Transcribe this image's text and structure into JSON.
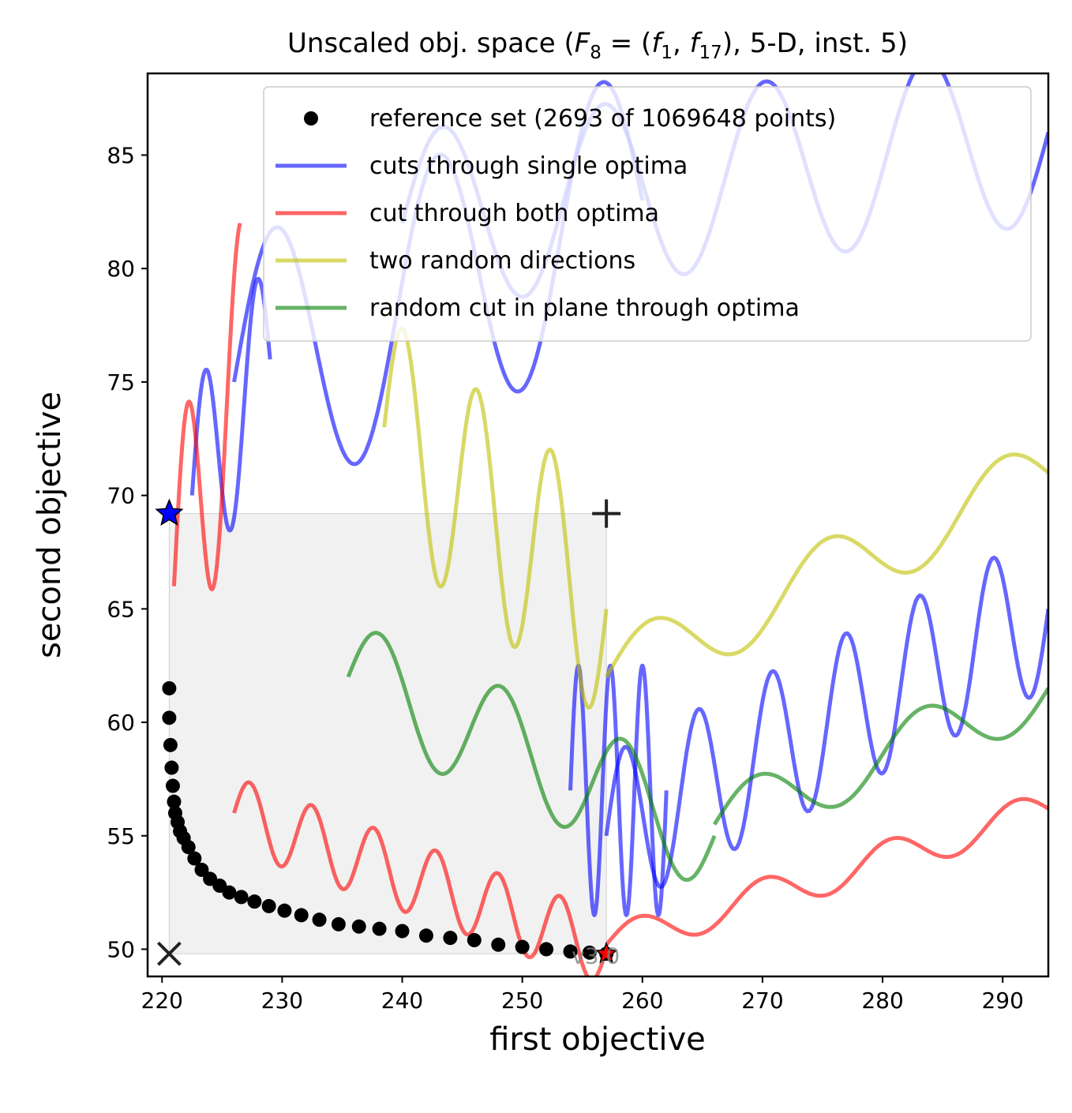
{
  "chart_data": {
    "type": "line",
    "title_pre": "Unscaled obj. space (",
    "title_math_F": "F",
    "title_math_Fsub": "8",
    "title_math_mid": " = (",
    "title_math_f1": "f",
    "title_math_f1sub": "1",
    "title_math_comma": ", ",
    "title_math_f2": "f",
    "title_math_f2sub": "17",
    "title_post": "), 5-D, inst. 5)",
    "xlabel": "first objective",
    "ylabel": "second objective",
    "xlim": [
      218.8,
      293.8
    ],
    "ylim": [
      48.8,
      88.6
    ],
    "xticks": [
      220,
      230,
      240,
      250,
      260,
      270,
      280,
      290
    ],
    "yticks": [
      50,
      55,
      60,
      65,
      70,
      75,
      80,
      85
    ],
    "grid": false,
    "legend_position": "top-right",
    "legend": [
      {
        "label": "reference set (2693 of 1069648 points)",
        "kind": "marker",
        "color": "#000000"
      },
      {
        "label": "cuts through single optima",
        "kind": "line",
        "color": "#0000ff"
      },
      {
        "label": "cut through both optima",
        "kind": "line",
        "color": "#ff0000"
      },
      {
        "label": "two random directions",
        "kind": "line",
        "color": "#bfbf00"
      },
      {
        "label": "random cut in plane through optima",
        "kind": "line",
        "color": "#008000"
      }
    ],
    "version_label": "v3.0",
    "ideal_point": {
      "x": 220.6,
      "y": 49.8
    },
    "nadir_point": {
      "x": 257.0,
      "y": 69.2
    },
    "optimum_f1": {
      "x": 220.6,
      "y": 69.2,
      "color": "#0000ff"
    },
    "optimum_f2": {
      "x": 257.0,
      "y": 49.8,
      "color": "#ff0000"
    },
    "reference_set": {
      "x": [
        220.6,
        220.6,
        220.7,
        220.8,
        220.9,
        221.0,
        221.1,
        221.3,
        221.5,
        221.8,
        222.2,
        222.7,
        223.3,
        224.0,
        224.8,
        225.6,
        226.6,
        227.7,
        228.9,
        230.2,
        231.6,
        233.1,
        234.7,
        236.4,
        238.1,
        240.0,
        242.0,
        244.0,
        246.0,
        248.0,
        250.0,
        252.0,
        254.0,
        255.6,
        257.0
      ],
      "y": [
        61.5,
        60.2,
        59.0,
        58.0,
        57.2,
        56.5,
        56.0,
        55.6,
        55.2,
        54.9,
        54.5,
        54.0,
        53.5,
        53.1,
        52.8,
        52.5,
        52.3,
        52.1,
        51.9,
        51.7,
        51.5,
        51.3,
        51.1,
        51.0,
        50.9,
        50.8,
        50.6,
        50.5,
        50.4,
        50.2,
        50.1,
        50.0,
        49.9,
        49.85,
        49.8
      ]
    },
    "series": [
      {
        "group": "single",
        "color": "#0000ff",
        "x0": 222.5,
        "x1": 229.0,
        "ybase": 70.0,
        "ramp": 6.0,
        "amp": 4.5,
        "freq": 3.0
      },
      {
        "group": "single",
        "color": "#0000ff",
        "x0": 226.0,
        "x1": 260.0,
        "ybase": 75.0,
        "ramp": 8.0,
        "amp": 6.0,
        "freq": 5.0
      },
      {
        "group": "single",
        "color": "#0000ff",
        "x0": 240.0,
        "x1": 293.8,
        "ybase": 82.0,
        "ramp": 4.0,
        "amp": 4.0,
        "freq": 8.0
      },
      {
        "group": "single",
        "color": "#0000ff",
        "x0": 257.0,
        "x1": 293.8,
        "ybase": 55.0,
        "ramp": 10.0,
        "amp": 3.5,
        "freq": 12.0
      },
      {
        "group": "single",
        "color": "#0000ff",
        "x0": 254.0,
        "x1": 262.0,
        "ybase": 57.0,
        "ramp": 0.0,
        "amp": 5.5,
        "freq": 6.0
      },
      {
        "group": "both",
        "color": "#ff0000",
        "x0": 221.0,
        "x1": 226.5,
        "ybase": 66.0,
        "ramp": 10.0,
        "amp": 6.0,
        "freq": 2.5
      },
      {
        "group": "both",
        "color": "#ff0000",
        "x0": 226.0,
        "x1": 257.0,
        "ybase": 56.0,
        "ramp": -6.0,
        "amp": 1.6,
        "freq": 12.0
      },
      {
        "group": "both",
        "color": "#ff0000",
        "x0": 257.0,
        "x1": 293.8,
        "ybase": 50.2,
        "ramp": 6.0,
        "amp": 0.8,
        "freq": 7.0
      },
      {
        "group": "random",
        "color": "#bfbf00",
        "x0": 238.5,
        "x1": 257.0,
        "ybase": 73.0,
        "ramp": -8.0,
        "amp": 5.0,
        "freq": 6.0
      },
      {
        "group": "random",
        "color": "#bfbf00",
        "x0": 257.0,
        "x1": 293.8,
        "ybase": 62.0,
        "ramp": 9.0,
        "amp": 1.6,
        "freq": 5.0
      },
      {
        "group": "plane",
        "color": "#008000",
        "x0": 235.5,
        "x1": 266.0,
        "ybase": 62.0,
        "ramp": -7.0,
        "amp": 2.5,
        "freq": 6.0
      },
      {
        "group": "plane",
        "color": "#008000",
        "x0": 266.0,
        "x1": 293.8,
        "ybase": 55.5,
        "ramp": 6.0,
        "amp": 1.4,
        "freq": 4.0
      }
    ]
  }
}
